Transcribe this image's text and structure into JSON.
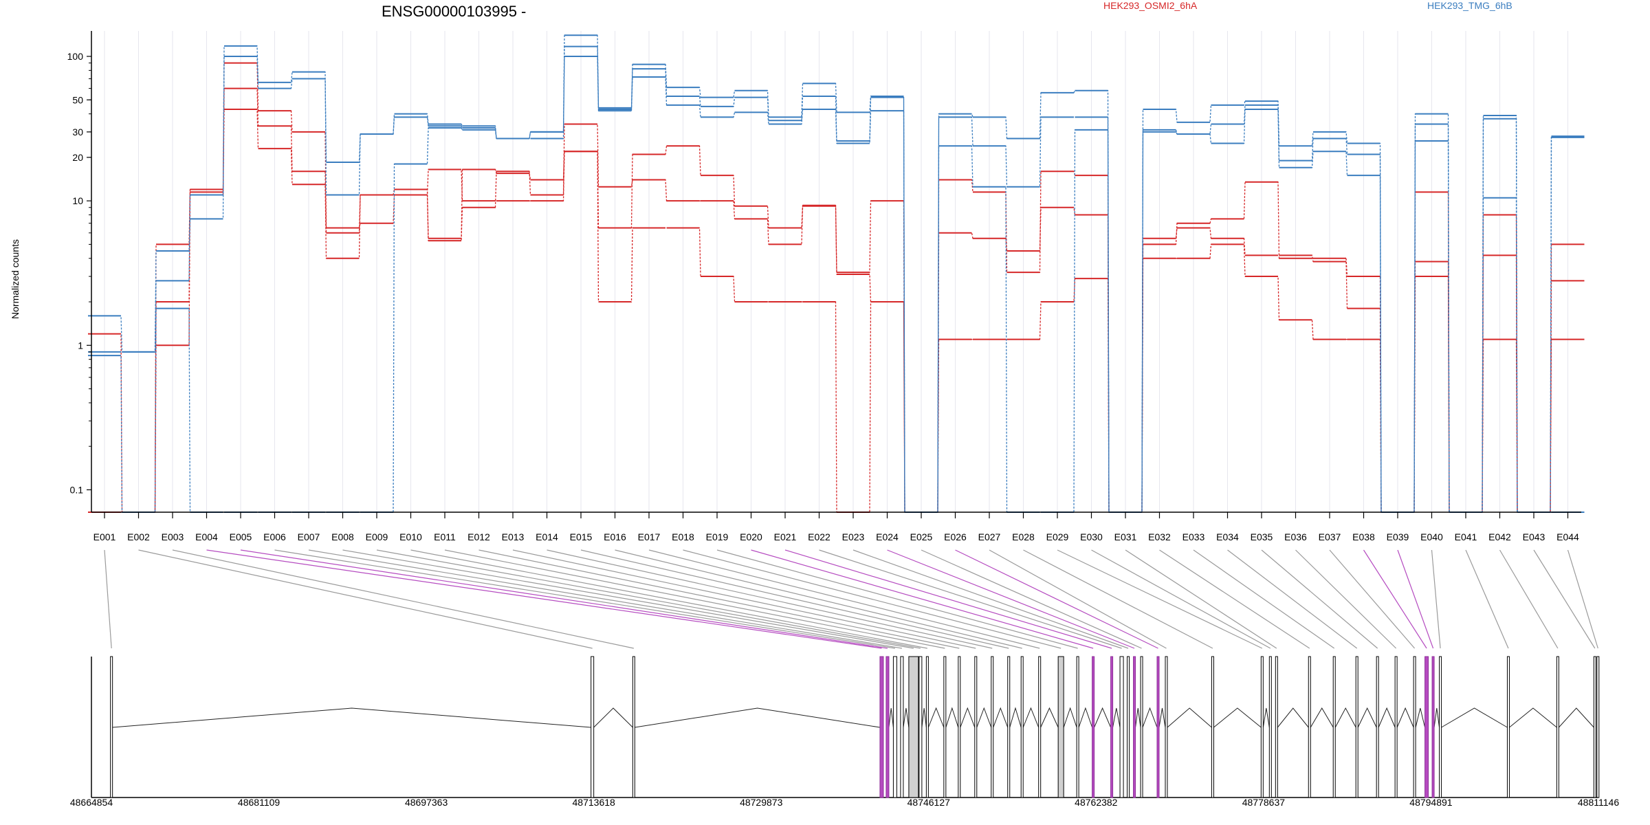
{
  "chart_data": {
    "type": "line",
    "title": "ENSG00000103995 -",
    "ylabel": "Normalized counts",
    "yscale": "log",
    "ylim": [
      0.07,
      150
    ],
    "yticks": [
      0.1,
      1,
      10,
      20,
      30,
      50,
      100
    ],
    "ytick_labels": [
      "0.1",
      "1",
      "10",
      "20",
      "30",
      "50",
      "100"
    ],
    "legend_placement": "top",
    "grid": "vertical dotted at exons",
    "exons": [
      "E001",
      "E002",
      "E003",
      "E004",
      "E005",
      "E006",
      "E007",
      "E008",
      "E009",
      "E010",
      "E011",
      "E012",
      "E013",
      "E014",
      "E015",
      "E016",
      "E017",
      "E018",
      "E019",
      "E020",
      "E021",
      "E022",
      "E023",
      "E024",
      "E025",
      "E026",
      "E027",
      "E028",
      "E029",
      "E030",
      "E031",
      "E032",
      "E033",
      "E034",
      "E035",
      "E036",
      "E037",
      "E038",
      "E039",
      "E040",
      "E041",
      "E042",
      "E043",
      "E044"
    ],
    "groups": [
      {
        "name": "HEK293_OSMI2_6hA",
        "color": "#d62728"
      },
      {
        "name": "HEK293_TMG_6hB",
        "color": "#3a7dbf"
      }
    ],
    "series": [
      {
        "group": 0,
        "values": [
          1.2,
          0.07,
          5,
          12,
          90,
          42,
          30,
          6.5,
          7,
          11,
          5.5,
          9,
          16,
          11,
          34,
          12.5,
          14,
          10,
          10,
          7.5,
          5,
          9.2,
          3.2,
          10,
          0.07,
          14,
          11.5,
          3.2,
          16,
          15,
          0.07,
          5,
          7,
          7.5,
          13.5,
          4,
          4,
          3,
          0.07,
          11.5,
          0.07,
          8,
          0.07,
          5
        ]
      },
      {
        "group": 0,
        "values": [
          0.07,
          0.07,
          1,
          11,
          60,
          33,
          16,
          6,
          11,
          12,
          5.3,
          16.5,
          15.5,
          14,
          22,
          6.5,
          21,
          24,
          15,
          9.2,
          6.5,
          9.3,
          3.1,
          2,
          0.07,
          6,
          5.5,
          4.5,
          9,
          8,
          0.07,
          5.5,
          6.5,
          5.5,
          4.2,
          4.2,
          3.8,
          1.8,
          0.07,
          3.8,
          0.07,
          4.2,
          0.07,
          2.8
        ]
      },
      {
        "group": 0,
        "values": [
          0.07,
          0.07,
          2,
          11.5,
          43,
          23,
          13,
          4,
          11,
          11,
          16.5,
          10,
          10,
          10,
          22,
          2,
          6.5,
          6.5,
          3,
          2,
          2,
          2,
          0.07,
          2,
          0.07,
          1.1,
          1.1,
          1.1,
          2,
          2.9,
          0.07,
          4,
          4,
          5,
          3,
          1.5,
          1.1,
          1.1,
          0.07,
          3,
          0.07,
          1.1,
          0.07,
          1.1
        ]
      },
      {
        "group": 1,
        "values": [
          1.6,
          0.9,
          4.5,
          7.5,
          118,
          66,
          78,
          11,
          29,
          40,
          34,
          33,
          27,
          27,
          140,
          44,
          88,
          61,
          52,
          58,
          38,
          65,
          41,
          53,
          0.07,
          40,
          38,
          27,
          56,
          58,
          0.07,
          43,
          35,
          46,
          49,
          24,
          30,
          25,
          0.07,
          40,
          0.07,
          39,
          0.07,
          28
        ]
      },
      {
        "group": 1,
        "values": [
          0.9,
          0.9,
          2.8,
          11,
          100,
          60,
          70,
          18.5,
          29,
          38,
          33,
          32,
          27,
          30,
          117,
          43,
          82,
          53,
          45,
          52,
          36,
          53,
          26,
          52,
          0.07,
          38,
          24,
          12.5,
          38,
          38,
          0.07,
          31,
          29,
          34,
          46,
          19,
          27,
          21,
          0.07,
          34,
          0.07,
          37,
          0.07,
          27.5
        ]
      },
      {
        "group": 1,
        "values": [
          0.85,
          0.07,
          1.8,
          0.07,
          0.07,
          0.07,
          0.07,
          0.07,
          0.07,
          18,
          32,
          31,
          27,
          30,
          100,
          42,
          72,
          46,
          38,
          41,
          34,
          43,
          25,
          42,
          0.07,
          24,
          12.5,
          0.07,
          0.07,
          31,
          0.07,
          30,
          29,
          25,
          43,
          17,
          22,
          15,
          0.07,
          26,
          0.07,
          10.5,
          0.07,
          0.07
        ]
      }
    ],
    "genomic_coordinates": [
      "48664854",
      "48681109",
      "48697363",
      "48713618",
      "48729873",
      "48746127",
      "48762382",
      "48778637",
      "48794891",
      "48811146"
    ]
  }
}
